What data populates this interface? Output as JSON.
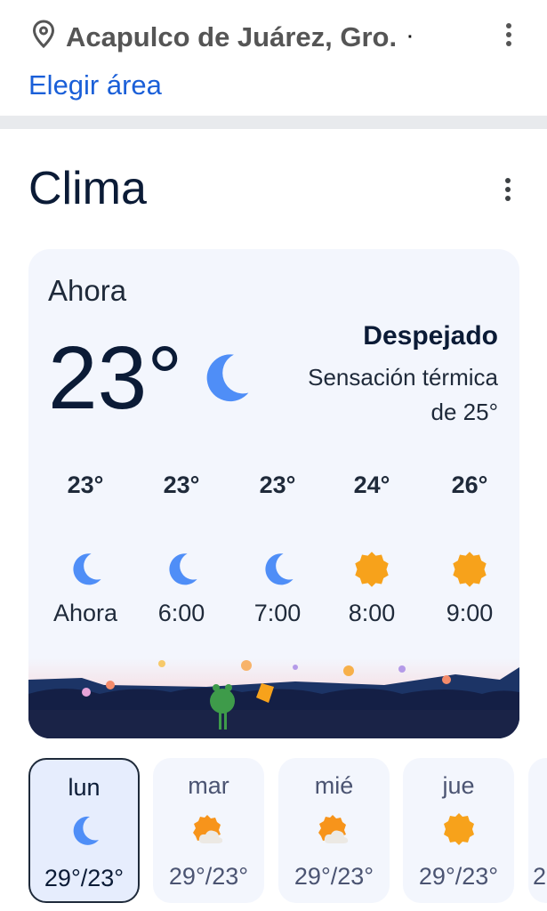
{
  "location": {
    "name": "Acapulco de Juárez, Gro.",
    "separator": "·",
    "choose_area": "Elegir área",
    "icon": "location-pin-icon"
  },
  "weather": {
    "title": "Clima",
    "now_label": "Ahora",
    "temperature": "23°",
    "icon": "moon-icon",
    "condition": "Despejado",
    "feels_like_line1": "Sensación térmica",
    "feels_like_line2": "de 25°",
    "hourly": [
      {
        "temp": "23°",
        "icon": "moon",
        "time": "Ahora"
      },
      {
        "temp": "23°",
        "icon": "moon",
        "time": "6:00"
      },
      {
        "temp": "23°",
        "icon": "moon",
        "time": "7:00"
      },
      {
        "temp": "24°",
        "icon": "sun",
        "time": "8:00"
      },
      {
        "temp": "26°",
        "icon": "sun",
        "time": "9:00"
      }
    ],
    "daily": [
      {
        "day": "lun",
        "icon": "moon",
        "range": "29°/23°",
        "selected": true
      },
      {
        "day": "mar",
        "icon": "sun-cloud",
        "range": "29°/23°"
      },
      {
        "day": "mié",
        "icon": "sun-cloud",
        "range": "29°/23°"
      },
      {
        "day": "jue",
        "icon": "sun",
        "range": "29°/23°"
      },
      {
        "day": "",
        "icon": "",
        "range": "2"
      }
    ]
  },
  "colors": {
    "accent": "#1a5fd8",
    "card": "#f3f6fd",
    "moon": "#4f8ef7",
    "sun": "#f7a21b"
  }
}
